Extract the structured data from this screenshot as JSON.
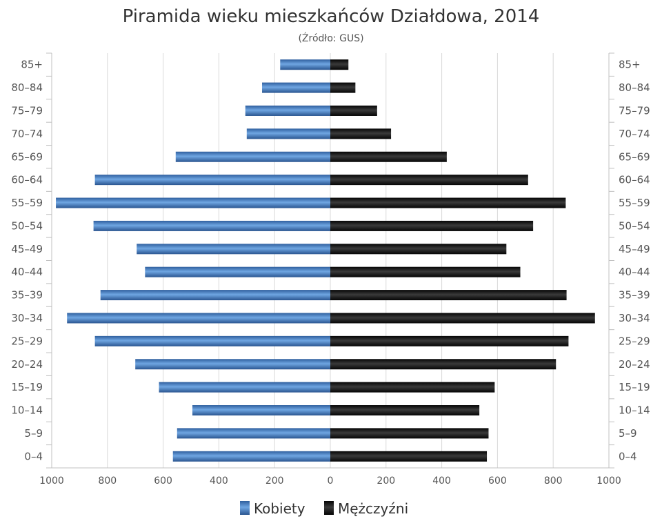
{
  "chart_data": {
    "type": "bar",
    "orientation": "horizontal-pyramid",
    "title": "Piramida wieku mieszkańców Działdowa, 2014",
    "subtitle": "(Źródło: GUS)",
    "categories": [
      "85+",
      "80–84",
      "75–79",
      "70–74",
      "65–69",
      "60–64",
      "55–59",
      "50–54",
      "45–49",
      "40–44",
      "35–39",
      "30–34",
      "25–29",
      "20–24",
      "15–19",
      "10–14",
      "5–9",
      "0–4"
    ],
    "series": [
      {
        "name": "Kobiety",
        "side": "left",
        "color": "#4a7fc0",
        "values": [
          180,
          245,
          305,
          300,
          555,
          845,
          985,
          850,
          695,
          665,
          825,
          945,
          845,
          700,
          615,
          495,
          550,
          565
        ]
      },
      {
        "name": "Mężczyźni",
        "side": "right",
        "color": "#1a1a1a",
        "values": [
          65,
          90,
          168,
          218,
          418,
          710,
          845,
          728,
          632,
          682,
          848,
          950,
          855,
          810,
          590,
          535,
          568,
          562
        ]
      }
    ],
    "xlim": [
      -1000,
      1000
    ],
    "x_ticks": [
      -1000,
      -800,
      -600,
      -400,
      -200,
      0,
      200,
      400,
      600,
      800,
      1000
    ],
    "x_tick_labels": [
      "1000",
      "800",
      "600",
      "400",
      "200",
      "0",
      "200",
      "400",
      "600",
      "800",
      "1000"
    ],
    "grid": true,
    "legend_position": "bottom-center"
  }
}
